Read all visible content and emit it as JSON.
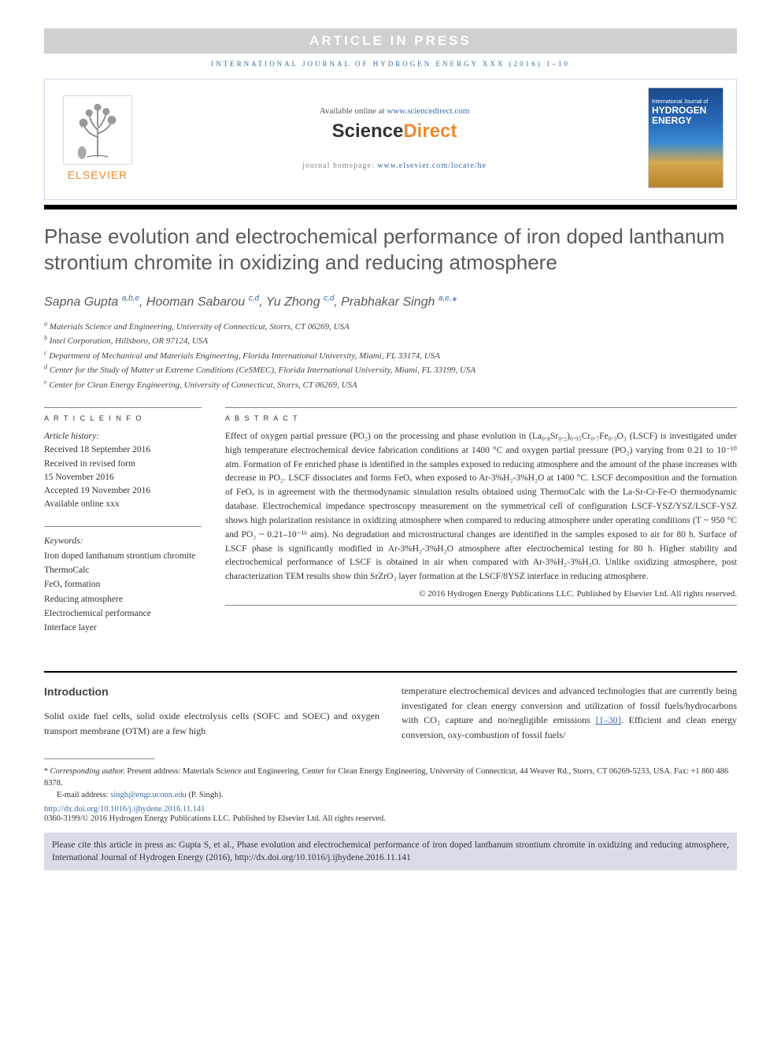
{
  "banner": {
    "article_in_press": "ARTICLE IN PRESS"
  },
  "journal_ref": "INTERNATIONAL JOURNAL OF HYDROGEN ENERGY XXX (2016) 1–10",
  "header": {
    "available_text": "Available online at ",
    "available_url": "www.sciencedirect.com",
    "sd_logo_left": "Science",
    "sd_logo_right": "Direct",
    "homepage_label": "journal homepage: ",
    "homepage_url": "www.elsevier.com/locate/he",
    "elsevier": "ELSEVIER",
    "cover_small": "International Journal of",
    "cover_main1": "HYDROGEN",
    "cover_main2": "ENERGY"
  },
  "title": "Phase evolution and electrochemical performance of iron doped lanthanum strontium chromite in oxidizing and reducing atmosphere",
  "authors_html": "Sapna Gupta <sup>a,b,e</sup>, Hooman Sabarou <sup>c,d</sup>, Yu Zhong <sup>c,d</sup>, Prabhakar Singh <sup>a,e,</sup><span class='star'>*</span>",
  "affiliations": [
    {
      "sup": "a",
      "text": "Materials Science and Engineering, University of Connecticut, Storrs, CT 06269, USA"
    },
    {
      "sup": "b",
      "text": "Intel Corporation, Hillsboro, OR 97124, USA"
    },
    {
      "sup": "c",
      "text": "Department of Mechanical and Materials Engineering, Florida International University, Miami, FL 33174, USA"
    },
    {
      "sup": "d",
      "text": "Center for the Study of Matter at Extreme Conditions (CeSMEC), Florida International University, Miami, FL 33199, USA"
    },
    {
      "sup": "e",
      "text": "Center for Clean Energy Engineering, University of Connecticut, Storrs, CT 06269, USA"
    }
  ],
  "article_info": {
    "heading": "A R T I C L E   I N F O",
    "history_label": "Article history:",
    "received": "Received 18 September 2016",
    "revised1": "Received in revised form",
    "revised2": "15 November 2016",
    "accepted": "Accepted 19 November 2016",
    "online": "Available online xxx",
    "keywords_label": "Keywords:",
    "keywords": [
      "Iron doped lanthanum strontium chromite",
      "ThermoCalc",
      "FeOₓ formation",
      "Reducing atmosphere",
      "Electrochemical performance",
      "Interface layer"
    ]
  },
  "abstract": {
    "heading": "A B S T R A C T",
    "text": "Effect of oxygen partial pressure (PO₂) on the processing and phase evolution in (La₀.₈Sr₀.₂)₀.₉₅Cr₀.₇Fe₀.₃O₃ (LSCF) is investigated under high temperature electrochemical device fabrication conditions at 1400 °C and oxygen partial pressure (PO₂) varying from 0.21 to 10⁻¹⁰ atm. Formation of Fe enriched phase is identified in the samples exposed to reducing atmosphere and the amount of the phase increases with decrease in PO₂. LSCF dissociates and forms FeOₓ when exposed to Ar-3%H₂-3%H₂O at 1400 °C. LSCF decomposition and the formation of FeOₓ is in agreement with the thermodynamic simulation results obtained using ThermoCalc with the La-Sr-Cr-Fe-O thermodynamic database. Electrochemical impedance spectroscopy measurement on the symmetrical cell of configuration LSCF-YSZ/YSZ/LSCF-YSZ shows high polarization resistance in oxidizing atmosphere when compared to reducing atmosphere under operating conditions (T ~ 950 °C and PO₂ ~ 0.21–10⁻¹⁶ atm). No degradation and microstructural changes are identified in the samples exposed to air for 80 h. Surface of LSCF phase is significantly modified in Ar-3%H₂-3%H₂O atmosphere after electrochemical testing for 80 h. Higher stability and electrochemical performance of LSCF is obtained in air when compared with Ar-3%H₂-3%H₂O. Unlike oxidizing atmosphere, post characterization TEM results show thin SrZrO₃ layer formation at the LSCF/8YSZ interface in reducing atmosphere.",
    "copyright": "© 2016 Hydrogen Energy Publications LLC. Published by Elsevier Ltd. All rights reserved."
  },
  "body": {
    "intro_heading": "Introduction",
    "col1": "Solid oxide fuel cells, solid oxide electrolysis cells (SOFC and SOEC) and oxygen transport membrane (OTM) are a few high",
    "col2_a": "temperature electrochemical devices and advanced technologies that are currently being investigated for clean energy conversion and utilization of fossil fuels/hydrocarbons with CO₂ capture and no/negligible emissions ",
    "col2_ref": "[1–30]",
    "col2_b": ". Efficient and clean energy conversion, oxy-combustion of fossil fuels/"
  },
  "footer": {
    "corr_label": "Corresponding author.",
    "corr_text": " Present address: Materials Science and Engineering, Center for Clean Energy Engineering, University of Connecticut, 44 Weaver Rd., Storrs, CT 06269-5233, USA. Fax: +1 860 486 8378.",
    "email_label": "E-mail address: ",
    "email": "singh@engr.uconn.edu",
    "email_who": " (P. Singh).",
    "doi": "http://dx.doi.org/10.1016/j.ijhydene.2016.11.141",
    "issn": "0360-3199/© 2016 Hydrogen Energy Publications LLC. Published by Elsevier Ltd. All rights reserved."
  },
  "cite_box": "Please cite this article in press as: Gupta S, et al., Phase evolution and electrochemical performance of iron doped lanthanum strontium chromite in oxidizing and reducing atmosphere, International Journal of Hydrogen Energy (2016), http://dx.doi.org/10.1016/j.ijhydene.2016.11.141",
  "colors": {
    "link": "#3a6aa8",
    "orange": "#ec8b2f",
    "grey_banner": "#d0d0d0",
    "cite_bg": "#d8dde8",
    "title_grey": "#5a5a5a"
  }
}
